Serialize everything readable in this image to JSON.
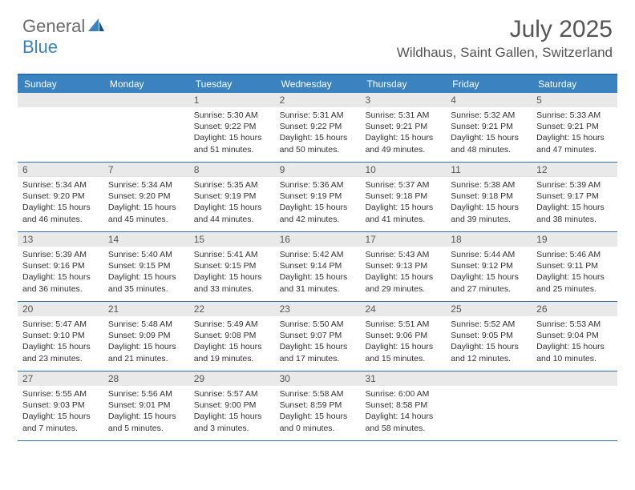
{
  "logo": {
    "part1": "General",
    "part2": "Blue"
  },
  "title": "July 2025",
  "location": "Wildhaus, Saint Gallen, Switzerland",
  "colors": {
    "header_bg": "#3b83c0",
    "border": "#2f6fa8",
    "daynum_bg": "#e9e9e9",
    "text_dark": "#333333",
    "text_mid": "#555555"
  },
  "day_headers": [
    "Sunday",
    "Monday",
    "Tuesday",
    "Wednesday",
    "Thursday",
    "Friday",
    "Saturday"
  ],
  "weeks": [
    [
      {
        "n": "",
        "sunrise": "",
        "sunset": "",
        "daylight": ""
      },
      {
        "n": "",
        "sunrise": "",
        "sunset": "",
        "daylight": ""
      },
      {
        "n": "1",
        "sunrise": "Sunrise: 5:30 AM",
        "sunset": "Sunset: 9:22 PM",
        "daylight": "Daylight: 15 hours and 51 minutes."
      },
      {
        "n": "2",
        "sunrise": "Sunrise: 5:31 AM",
        "sunset": "Sunset: 9:22 PM",
        "daylight": "Daylight: 15 hours and 50 minutes."
      },
      {
        "n": "3",
        "sunrise": "Sunrise: 5:31 AM",
        "sunset": "Sunset: 9:21 PM",
        "daylight": "Daylight: 15 hours and 49 minutes."
      },
      {
        "n": "4",
        "sunrise": "Sunrise: 5:32 AM",
        "sunset": "Sunset: 9:21 PM",
        "daylight": "Daylight: 15 hours and 48 minutes."
      },
      {
        "n": "5",
        "sunrise": "Sunrise: 5:33 AM",
        "sunset": "Sunset: 9:21 PM",
        "daylight": "Daylight: 15 hours and 47 minutes."
      }
    ],
    [
      {
        "n": "6",
        "sunrise": "Sunrise: 5:34 AM",
        "sunset": "Sunset: 9:20 PM",
        "daylight": "Daylight: 15 hours and 46 minutes."
      },
      {
        "n": "7",
        "sunrise": "Sunrise: 5:34 AM",
        "sunset": "Sunset: 9:20 PM",
        "daylight": "Daylight: 15 hours and 45 minutes."
      },
      {
        "n": "8",
        "sunrise": "Sunrise: 5:35 AM",
        "sunset": "Sunset: 9:19 PM",
        "daylight": "Daylight: 15 hours and 44 minutes."
      },
      {
        "n": "9",
        "sunrise": "Sunrise: 5:36 AM",
        "sunset": "Sunset: 9:19 PM",
        "daylight": "Daylight: 15 hours and 42 minutes."
      },
      {
        "n": "10",
        "sunrise": "Sunrise: 5:37 AM",
        "sunset": "Sunset: 9:18 PM",
        "daylight": "Daylight: 15 hours and 41 minutes."
      },
      {
        "n": "11",
        "sunrise": "Sunrise: 5:38 AM",
        "sunset": "Sunset: 9:18 PM",
        "daylight": "Daylight: 15 hours and 39 minutes."
      },
      {
        "n": "12",
        "sunrise": "Sunrise: 5:39 AM",
        "sunset": "Sunset: 9:17 PM",
        "daylight": "Daylight: 15 hours and 38 minutes."
      }
    ],
    [
      {
        "n": "13",
        "sunrise": "Sunrise: 5:39 AM",
        "sunset": "Sunset: 9:16 PM",
        "daylight": "Daylight: 15 hours and 36 minutes."
      },
      {
        "n": "14",
        "sunrise": "Sunrise: 5:40 AM",
        "sunset": "Sunset: 9:15 PM",
        "daylight": "Daylight: 15 hours and 35 minutes."
      },
      {
        "n": "15",
        "sunrise": "Sunrise: 5:41 AM",
        "sunset": "Sunset: 9:15 PM",
        "daylight": "Daylight: 15 hours and 33 minutes."
      },
      {
        "n": "16",
        "sunrise": "Sunrise: 5:42 AM",
        "sunset": "Sunset: 9:14 PM",
        "daylight": "Daylight: 15 hours and 31 minutes."
      },
      {
        "n": "17",
        "sunrise": "Sunrise: 5:43 AM",
        "sunset": "Sunset: 9:13 PM",
        "daylight": "Daylight: 15 hours and 29 minutes."
      },
      {
        "n": "18",
        "sunrise": "Sunrise: 5:44 AM",
        "sunset": "Sunset: 9:12 PM",
        "daylight": "Daylight: 15 hours and 27 minutes."
      },
      {
        "n": "19",
        "sunrise": "Sunrise: 5:46 AM",
        "sunset": "Sunset: 9:11 PM",
        "daylight": "Daylight: 15 hours and 25 minutes."
      }
    ],
    [
      {
        "n": "20",
        "sunrise": "Sunrise: 5:47 AM",
        "sunset": "Sunset: 9:10 PM",
        "daylight": "Daylight: 15 hours and 23 minutes."
      },
      {
        "n": "21",
        "sunrise": "Sunrise: 5:48 AM",
        "sunset": "Sunset: 9:09 PM",
        "daylight": "Daylight: 15 hours and 21 minutes."
      },
      {
        "n": "22",
        "sunrise": "Sunrise: 5:49 AM",
        "sunset": "Sunset: 9:08 PM",
        "daylight": "Daylight: 15 hours and 19 minutes."
      },
      {
        "n": "23",
        "sunrise": "Sunrise: 5:50 AM",
        "sunset": "Sunset: 9:07 PM",
        "daylight": "Daylight: 15 hours and 17 minutes."
      },
      {
        "n": "24",
        "sunrise": "Sunrise: 5:51 AM",
        "sunset": "Sunset: 9:06 PM",
        "daylight": "Daylight: 15 hours and 15 minutes."
      },
      {
        "n": "25",
        "sunrise": "Sunrise: 5:52 AM",
        "sunset": "Sunset: 9:05 PM",
        "daylight": "Daylight: 15 hours and 12 minutes."
      },
      {
        "n": "26",
        "sunrise": "Sunrise: 5:53 AM",
        "sunset": "Sunset: 9:04 PM",
        "daylight": "Daylight: 15 hours and 10 minutes."
      }
    ],
    [
      {
        "n": "27",
        "sunrise": "Sunrise: 5:55 AM",
        "sunset": "Sunset: 9:03 PM",
        "daylight": "Daylight: 15 hours and 7 minutes."
      },
      {
        "n": "28",
        "sunrise": "Sunrise: 5:56 AM",
        "sunset": "Sunset: 9:01 PM",
        "daylight": "Daylight: 15 hours and 5 minutes."
      },
      {
        "n": "29",
        "sunrise": "Sunrise: 5:57 AM",
        "sunset": "Sunset: 9:00 PM",
        "daylight": "Daylight: 15 hours and 3 minutes."
      },
      {
        "n": "30",
        "sunrise": "Sunrise: 5:58 AM",
        "sunset": "Sunset: 8:59 PM",
        "daylight": "Daylight: 15 hours and 0 minutes."
      },
      {
        "n": "31",
        "sunrise": "Sunrise: 6:00 AM",
        "sunset": "Sunset: 8:58 PM",
        "daylight": "Daylight: 14 hours and 58 minutes."
      },
      {
        "n": "",
        "sunrise": "",
        "sunset": "",
        "daylight": ""
      },
      {
        "n": "",
        "sunrise": "",
        "sunset": "",
        "daylight": ""
      }
    ]
  ]
}
